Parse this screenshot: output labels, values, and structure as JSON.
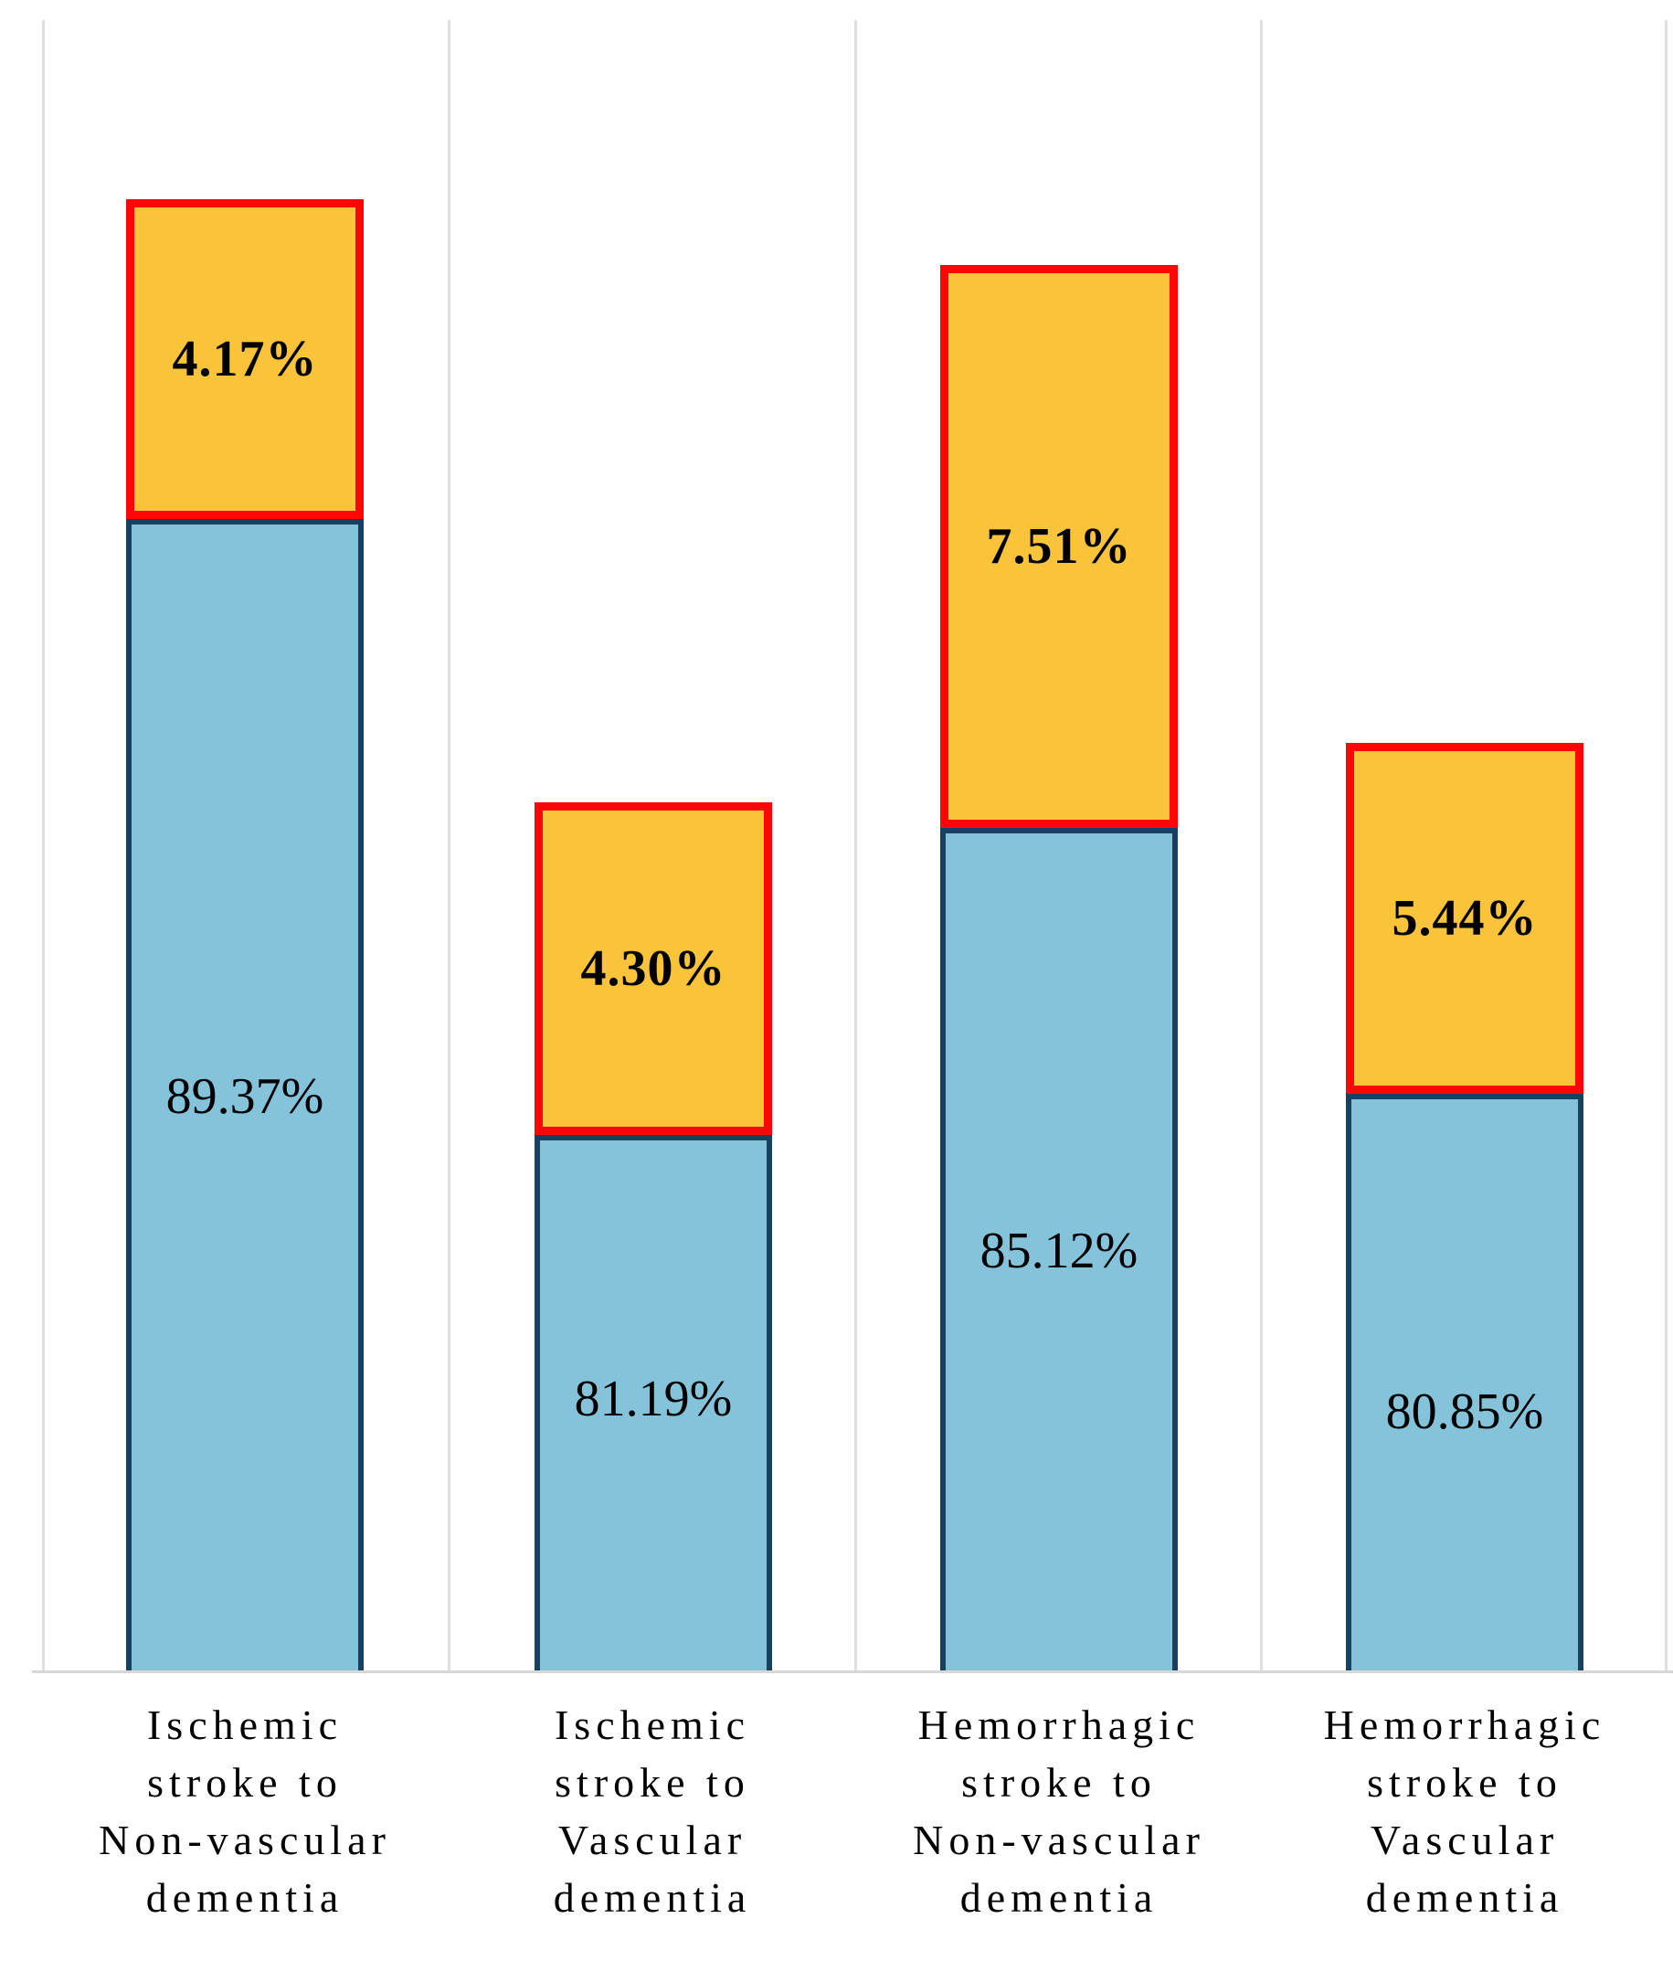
{
  "chart_data": {
    "type": "bar",
    "stacked": true,
    "orientation": "vertical",
    "title": "",
    "xlabel": "",
    "ylabel": "",
    "legend": "none",
    "gridlines": "vertical light-gray category separators, no visible y-axis ticks",
    "categories": [
      "Ischemic stroke to Non-vascular dementia",
      "Ischemic stroke to Vascular dementia",
      "Hemorrhagic stroke to Non-vascular dementia",
      "Hemorrhagic stroke to Vascular dementia"
    ],
    "series": [
      {
        "name": "lower segment (light blue, dark navy outline)",
        "values": [
          89.37,
          81.19,
          85.12,
          80.85
        ]
      },
      {
        "name": "upper highlighted segment (orange, thick red outline)",
        "values": [
          4.17,
          4.3,
          7.51,
          5.44
        ]
      }
    ],
    "data_labels": "percent values printed inside each segment",
    "note": "orange highlighted segments are drawn exaggerated, not to the same pixel scale as the blue segments"
  },
  "bars": [
    {
      "category": "Ischemic stroke to Non-vascular dementia",
      "blue_label": "89.37%",
      "orange_label": "4.17%"
    },
    {
      "category": "Ischemic stroke to Vascular dementia",
      "blue_label": "81.19%",
      "orange_label": "4.30%"
    },
    {
      "category": "Hemorrhagic stroke to Non-vascular dementia",
      "blue_label": "85.12%",
      "orange_label": "7.51%"
    },
    {
      "category": "Hemorrhagic stroke to Vascular dementia",
      "blue_label": "80.85%",
      "orange_label": "5.44%"
    }
  ],
  "categories": [
    {
      "label": "Ischemic\nstroke to\nNon-vascular\ndementia"
    },
    {
      "label": "Ischemic\nstroke to\nVascular\ndementia"
    },
    {
      "label": "Hemorrhagic\nstroke to\nNon-vascular\ndementia"
    },
    {
      "label": "Hemorrhagic\nstroke to\nVascular\ndementia"
    }
  ],
  "colors": {
    "blue_fill": "#85C3DB",
    "blue_border": "#18415F",
    "orange_fill": "#F9C33A",
    "orange_border": "#FF0505",
    "gridline": "#DFDFDF",
    "axis_line": "#D8D8D8",
    "label_text": "#000000",
    "background": "#FFFFFF"
  }
}
